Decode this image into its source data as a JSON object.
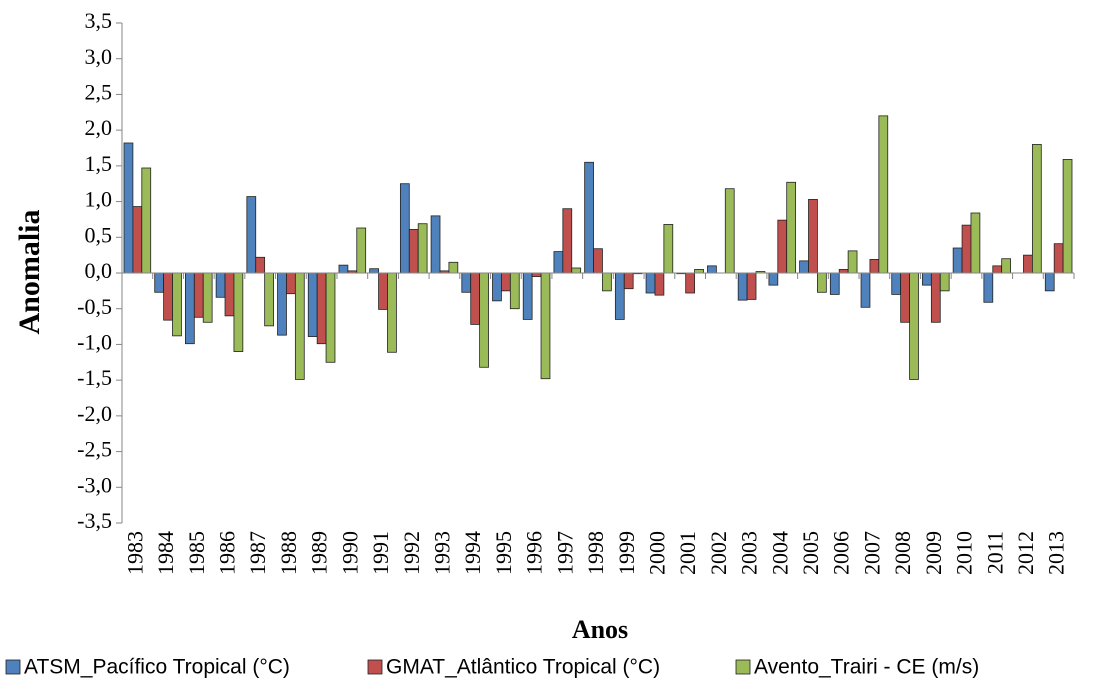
{
  "chart_data": {
    "type": "bar",
    "x_label": "Anos",
    "y_label": "Anomalia",
    "categories": [
      "1983",
      "1984",
      "1985",
      "1986",
      "1987",
      "1988",
      "1989",
      "1990",
      "1991",
      "1992",
      "1993",
      "1994",
      "1995",
      "1996",
      "1997",
      "1998",
      "1999",
      "2000",
      "2001",
      "2002",
      "2003",
      "2004",
      "2005",
      "2006",
      "2007",
      "2008",
      "2009",
      "2010",
      "2011",
      "2012",
      "2013"
    ],
    "series": [
      {
        "name": "ATSM_Pacífico Tropical (°C)",
        "color": "#4f81bd",
        "values": [
          1.82,
          -0.27,
          -0.99,
          -0.34,
          1.07,
          -0.87,
          -0.89,
          0.11,
          0.06,
          1.25,
          0.8,
          -0.27,
          -0.39,
          -0.65,
          0.3,
          1.55,
          -0.65,
          -0.28,
          -0.01,
          0.1,
          -0.38,
          -0.17,
          0.17,
          -0.3,
          -0.48,
          -0.3,
          -0.17,
          0.35,
          -0.41,
          0.0,
          -0.25
        ]
      },
      {
        "name": "GMAT_Atlântico Tropical (°C)",
        "color": "#c0504d",
        "values": [
          0.93,
          -0.66,
          -0.62,
          -0.6,
          0.22,
          -0.29,
          -0.99,
          0.03,
          -0.51,
          0.61,
          0.03,
          -0.72,
          -0.25,
          -0.05,
          0.9,
          0.34,
          -0.22,
          -0.31,
          -0.28,
          0.0,
          -0.37,
          0.74,
          1.03,
          0.05,
          0.19,
          -0.69,
          -0.69,
          0.67,
          0.1,
          0.25,
          0.41
        ]
      },
      {
        "name": "Avento_Trairi - CE (m/s)",
        "color": "#9bbb59",
        "values": [
          1.47,
          -0.88,
          -0.69,
          -1.1,
          -0.74,
          -1.49,
          -1.25,
          0.63,
          -1.11,
          0.69,
          0.15,
          -1.32,
          -0.5,
          -1.48,
          0.07,
          -0.25,
          -0.01,
          0.68,
          0.05,
          1.18,
          0.02,
          1.27,
          -0.27,
          0.31,
          2.2,
          -1.49,
          -0.25,
          0.84,
          0.2,
          1.8,
          1.59
        ]
      }
    ],
    "ylim": [
      -3.5,
      3.5
    ],
    "yticks": [
      {
        "value": 3.5,
        "label": "3,5"
      },
      {
        "value": 3.0,
        "label": "3,0"
      },
      {
        "value": 2.5,
        "label": "2,5"
      },
      {
        "value": 2.0,
        "label": "2,0"
      },
      {
        "value": 1.5,
        "label": "1,5"
      },
      {
        "value": 1.0,
        "label": "1,0"
      },
      {
        "value": 0.5,
        "label": "0,5"
      },
      {
        "value": 0.0,
        "label": "0,0"
      },
      {
        "value": -0.5,
        "label": "-0,5"
      },
      {
        "value": -1.0,
        "label": "-1,0"
      },
      {
        "value": -1.5,
        "label": "-1,5"
      },
      {
        "value": -2.0,
        "label": "-2,0"
      },
      {
        "value": -2.5,
        "label": "-2,5"
      },
      {
        "value": -3.0,
        "label": "-3,0"
      },
      {
        "value": -3.5,
        "label": "-3,5"
      }
    ],
    "legend": "bottom"
  }
}
